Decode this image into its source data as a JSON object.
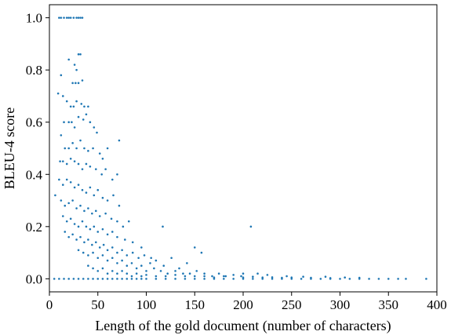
{
  "chart_data": {
    "type": "scatter",
    "title": "",
    "xlabel": "Length of the gold document (number of characters)",
    "ylabel": "BLEU-4 score",
    "xlim": [
      0,
      400
    ],
    "ylim": [
      -0.05,
      1.05
    ],
    "xticks": [
      0,
      50,
      100,
      150,
      200,
      250,
      300,
      350,
      400
    ],
    "yticks": [
      0.0,
      0.2,
      0.4,
      0.6,
      0.8,
      1.0
    ],
    "xtick_labels": [
      "0",
      "50",
      "100",
      "150",
      "200",
      "250",
      "300",
      "350",
      "400"
    ],
    "ytick_labels": [
      "0.0",
      "0.2",
      "0.4",
      "0.6",
      "0.8",
      "1.0"
    ],
    "marker_color": "#1f77b4",
    "grid": false,
    "series": [
      {
        "points": [
          [
            10,
            1.0
          ],
          [
            12,
            1.0
          ],
          [
            15,
            1.0
          ],
          [
            18,
            1.0
          ],
          [
            20,
            1.0
          ],
          [
            22,
            1.0
          ],
          [
            25,
            1.0
          ],
          [
            28,
            1.0
          ],
          [
            30,
            1.0
          ],
          [
            32,
            1.0
          ],
          [
            34,
            1.0
          ],
          [
            20,
            0.84
          ],
          [
            26,
            0.82
          ],
          [
            30,
            0.86
          ],
          [
            32,
            0.86
          ],
          [
            28,
            0.8
          ],
          [
            12,
            0.78
          ],
          [
            24,
            0.75
          ],
          [
            27,
            0.75
          ],
          [
            30,
            0.75
          ],
          [
            34,
            0.76
          ],
          [
            9,
            0.71
          ],
          [
            14,
            0.7
          ],
          [
            18,
            0.68
          ],
          [
            22,
            0.66
          ],
          [
            25,
            0.66
          ],
          [
            28,
            0.68
          ],
          [
            33,
            0.67
          ],
          [
            36,
            0.66
          ],
          [
            40,
            0.66
          ],
          [
            15,
            0.6
          ],
          [
            20,
            0.6
          ],
          [
            23,
            0.6
          ],
          [
            26,
            0.58
          ],
          [
            30,
            0.62
          ],
          [
            35,
            0.61
          ],
          [
            38,
            0.63
          ],
          [
            42,
            0.6
          ],
          [
            46,
            0.58
          ],
          [
            49,
            0.56
          ],
          [
            12,
            0.55
          ],
          [
            16,
            0.5
          ],
          [
            20,
            0.5
          ],
          [
            24,
            0.52
          ],
          [
            28,
            0.5
          ],
          [
            32,
            0.53
          ],
          [
            36,
            0.5
          ],
          [
            40,
            0.49
          ],
          [
            45,
            0.5
          ],
          [
            52,
            0.48
          ],
          [
            55,
            0.46
          ],
          [
            60,
            0.5
          ],
          [
            72,
            0.53
          ],
          [
            11,
            0.45
          ],
          [
            14,
            0.45
          ],
          [
            18,
            0.44
          ],
          [
            22,
            0.46
          ],
          [
            26,
            0.45
          ],
          [
            30,
            0.44
          ],
          [
            34,
            0.42
          ],
          [
            38,
            0.44
          ],
          [
            42,
            0.43
          ],
          [
            48,
            0.42
          ],
          [
            54,
            0.4
          ],
          [
            58,
            0.42
          ],
          [
            65,
            0.38
          ],
          [
            70,
            0.4
          ],
          [
            6,
            0.32
          ],
          [
            10,
            0.38
          ],
          [
            14,
            0.36
          ],
          [
            18,
            0.38
          ],
          [
            22,
            0.37
          ],
          [
            26,
            0.35
          ],
          [
            30,
            0.36
          ],
          [
            34,
            0.34
          ],
          [
            38,
            0.33
          ],
          [
            42,
            0.35
          ],
          [
            46,
            0.32
          ],
          [
            50,
            0.34
          ],
          [
            55,
            0.31
          ],
          [
            60,
            0.3
          ],
          [
            66,
            0.32
          ],
          [
            72,
            0.28
          ],
          [
            12,
            0.3
          ],
          [
            16,
            0.28
          ],
          [
            20,
            0.29
          ],
          [
            24,
            0.3
          ],
          [
            28,
            0.27
          ],
          [
            32,
            0.28
          ],
          [
            36,
            0.26
          ],
          [
            40,
            0.27
          ],
          [
            44,
            0.25
          ],
          [
            48,
            0.26
          ],
          [
            52,
            0.24
          ],
          [
            58,
            0.25
          ],
          [
            64,
            0.23
          ],
          [
            70,
            0.22
          ],
          [
            76,
            0.2
          ],
          [
            82,
            0.22
          ],
          [
            14,
            0.24
          ],
          [
            18,
            0.22
          ],
          [
            22,
            0.23
          ],
          [
            26,
            0.21
          ],
          [
            30,
            0.2
          ],
          [
            34,
            0.22
          ],
          [
            38,
            0.2
          ],
          [
            42,
            0.19
          ],
          [
            46,
            0.2
          ],
          [
            50,
            0.18
          ],
          [
            55,
            0.19
          ],
          [
            60,
            0.17
          ],
          [
            65,
            0.18
          ],
          [
            70,
            0.16
          ],
          [
            78,
            0.15
          ],
          [
            86,
            0.14
          ],
          [
            95,
            0.12
          ],
          [
            105,
            0.08
          ],
          [
            117,
            0.2
          ],
          [
            16,
            0.18
          ],
          [
            20,
            0.16
          ],
          [
            24,
            0.17
          ],
          [
            28,
            0.15
          ],
          [
            32,
            0.16
          ],
          [
            36,
            0.14
          ],
          [
            40,
            0.15
          ],
          [
            44,
            0.13
          ],
          [
            48,
            0.14
          ],
          [
            52,
            0.12
          ],
          [
            56,
            0.13
          ],
          [
            60,
            0.11
          ],
          [
            65,
            0.12
          ],
          [
            70,
            0.1
          ],
          [
            75,
            0.11
          ],
          [
            80,
            0.09
          ],
          [
            86,
            0.1
          ],
          [
            92,
            0.08
          ],
          [
            98,
            0.09
          ],
          [
            104,
            0.06
          ],
          [
            110,
            0.07
          ],
          [
            118,
            0.05
          ],
          [
            126,
            0.08
          ],
          [
            134,
            0.04
          ],
          [
            142,
            0.06
          ],
          [
            150,
            0.12
          ],
          [
            157,
            0.1
          ],
          [
            30,
            0.11
          ],
          [
            35,
            0.1
          ],
          [
            40,
            0.09
          ],
          [
            45,
            0.1
          ],
          [
            50,
            0.08
          ],
          [
            55,
            0.09
          ],
          [
            60,
            0.07
          ],
          [
            65,
            0.08
          ],
          [
            70,
            0.06
          ],
          [
            75,
            0.07
          ],
          [
            80,
            0.05
          ],
          [
            85,
            0.06
          ],
          [
            90,
            0.04
          ],
          [
            95,
            0.05
          ],
          [
            100,
            0.03
          ],
          [
            108,
            0.04
          ],
          [
            115,
            0.03
          ],
          [
            122,
            0.02
          ],
          [
            130,
            0.03
          ],
          [
            138,
            0.02
          ],
          [
            145,
            0.02
          ],
          [
            152,
            0.03
          ],
          [
            160,
            0.02
          ],
          [
            168,
            0.01
          ],
          [
            175,
            0.02
          ],
          [
            182,
            0.01
          ],
          [
            190,
            0.015
          ],
          [
            198,
            0.01
          ],
          [
            40,
            0.05
          ],
          [
            45,
            0.04
          ],
          [
            50,
            0.03
          ],
          [
            55,
            0.04
          ],
          [
            60,
            0.02
          ],
          [
            65,
            0.03
          ],
          [
            70,
            0.02
          ],
          [
            75,
            0.03
          ],
          [
            80,
            0.02
          ],
          [
            85,
            0.01
          ],
          [
            90,
            0.02
          ],
          [
            95,
            0.01
          ],
          [
            100,
            0.015
          ],
          [
            110,
            0.01
          ],
          [
            120,
            0.01
          ],
          [
            130,
            0.015
          ],
          [
            140,
            0.01
          ],
          [
            150,
            0.01
          ],
          [
            160,
            0.01
          ],
          [
            170,
            0.005
          ],
          [
            180,
            0.01
          ],
          [
            200,
            0.005
          ],
          [
            210,
            0.008
          ],
          [
            220,
            0.005
          ],
          [
            230,
            0.006
          ],
          [
            240,
            0.004
          ],
          [
            250,
            0.005
          ],
          [
            270,
            0.004
          ],
          [
            290,
            0.003
          ],
          [
            5,
            0.0
          ],
          [
            10,
            0.0
          ],
          [
            15,
            0.0
          ],
          [
            20,
            0.0
          ],
          [
            25,
            0.0
          ],
          [
            30,
            0.0
          ],
          [
            35,
            0.0
          ],
          [
            40,
            0.0
          ],
          [
            45,
            0.0
          ],
          [
            50,
            0.0
          ],
          [
            55,
            0.0
          ],
          [
            60,
            0.0
          ],
          [
            65,
            0.0
          ],
          [
            70,
            0.0
          ],
          [
            75,
            0.0
          ],
          [
            80,
            0.0
          ],
          [
            85,
            0.0
          ],
          [
            90,
            0.0
          ],
          [
            95,
            0.0
          ],
          [
            100,
            0.0
          ],
          [
            110,
            0.0
          ],
          [
            120,
            0.0
          ],
          [
            130,
            0.0
          ],
          [
            140,
            0.0
          ],
          [
            150,
            0.0
          ],
          [
            160,
            0.0
          ],
          [
            170,
            0.0
          ],
          [
            180,
            0.0
          ],
          [
            190,
            0.0
          ],
          [
            200,
            0.0
          ],
          [
            210,
            0.0
          ],
          [
            220,
            0.0
          ],
          [
            230,
            0.0
          ],
          [
            240,
            0.0
          ],
          [
            250,
            0.0
          ],
          [
            260,
            0.0
          ],
          [
            270,
            0.0
          ],
          [
            280,
            0.0
          ],
          [
            290,
            0.0
          ],
          [
            300,
            0.0
          ],
          [
            310,
            0.0
          ],
          [
            320,
            0.0
          ],
          [
            330,
            0.0
          ],
          [
            340,
            0.0
          ],
          [
            350,
            0.0
          ],
          [
            360,
            0.0
          ],
          [
            368,
            0.0
          ],
          [
            389,
            0.0
          ],
          [
            208,
            0.2
          ],
          [
            200,
            0.02
          ],
          [
            215,
            0.02
          ],
          [
            225,
            0.015
          ],
          [
            245,
            0.01
          ],
          [
            262,
            0.008
          ],
          [
            285,
            0.008
          ],
          [
            305,
            0.005
          ],
          [
            320,
            0.004
          ]
        ]
      }
    ]
  }
}
